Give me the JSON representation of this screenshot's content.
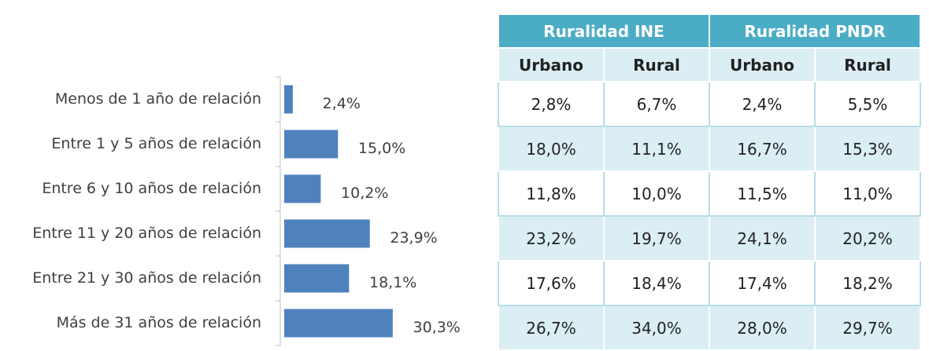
{
  "chart_data": {
    "type": "bar",
    "orientation": "horizontal",
    "categories": [
      "Menos de 1 año de relación",
      "Entre 1 y 5 años de relación",
      "Entre 6 y 10 años de relación",
      "Entre 11 y 20 años de relación",
      "Entre 21 y 30 años de relación",
      "Más de 31 años de relación"
    ],
    "values": [
      2.4,
      15.0,
      10.2,
      23.9,
      18.1,
      30.3
    ],
    "value_labels": [
      "2,4%",
      "15,0%",
      "10,2%",
      "23,9%",
      "18,1%",
      "30,3%"
    ],
    "color": "#4f81bd"
  },
  "table": {
    "header": [
      "Ruralidad INE",
      "Ruralidad PNDR"
    ],
    "subheader": [
      "Urbano",
      "Rural",
      "Urbano",
      "Rural"
    ],
    "rows": [
      [
        "2,8%",
        "6,7%",
        "2,4%",
        "5,5%"
      ],
      [
        "18,0%",
        "11,1%",
        "16,7%",
        "15,3%"
      ],
      [
        "11,8%",
        "10,0%",
        "11,5%",
        "11,0%"
      ],
      [
        "23,2%",
        "19,7%",
        "24,1%",
        "20,2%"
      ],
      [
        "17,6%",
        "18,4%",
        "17,4%",
        "18,2%"
      ],
      [
        "26,7%",
        "34,0%",
        "28,0%",
        "29,7%"
      ]
    ]
  }
}
